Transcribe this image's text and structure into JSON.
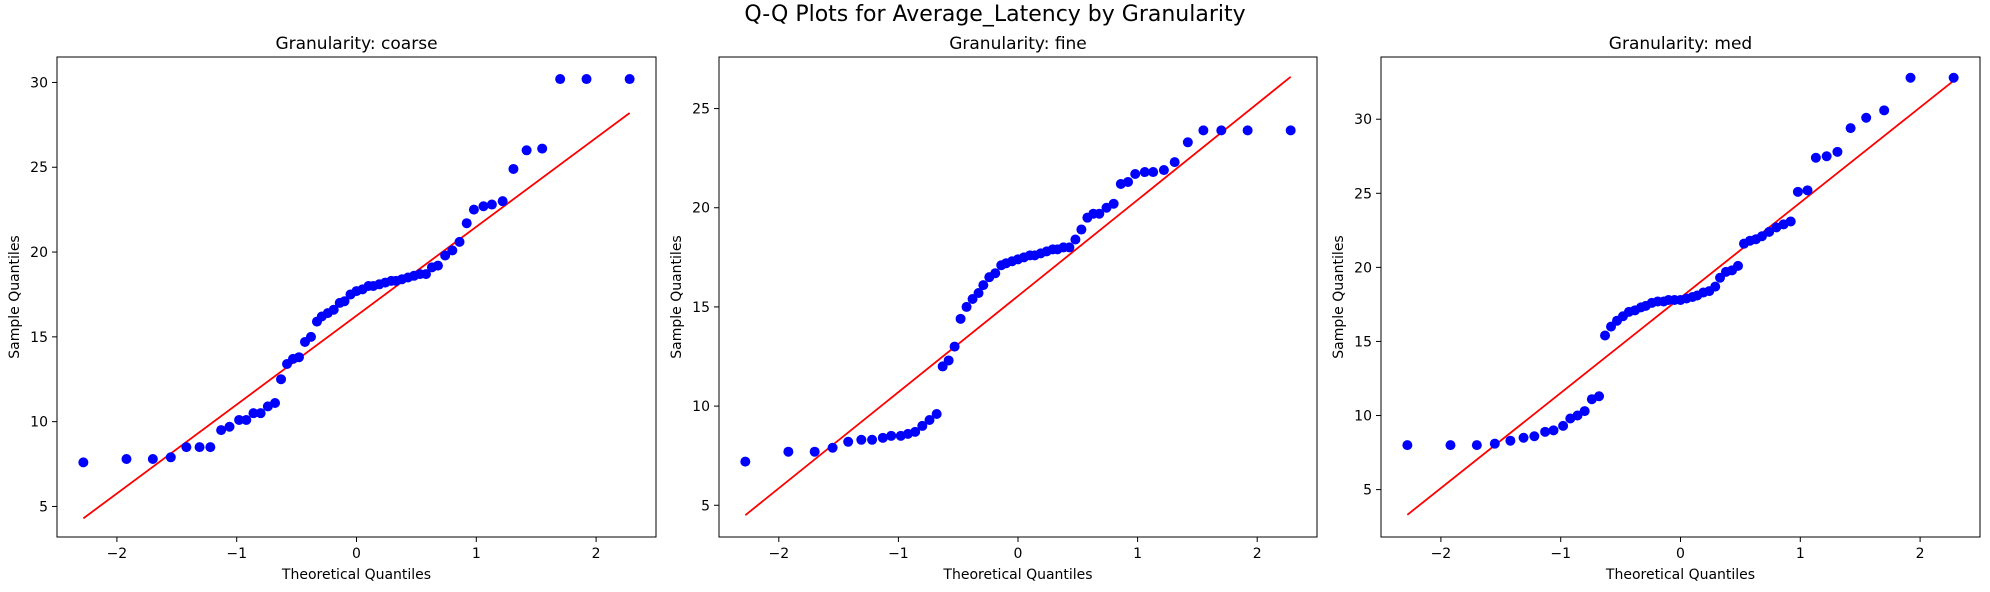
{
  "figure": {
    "title": "Q-Q Plots for Average_Latency by Granularity",
    "point_color": "#0000ff",
    "line_color": "#ff0000"
  },
  "chart_data": [
    {
      "type": "scatter",
      "title": "Granularity: coarse",
      "xlabel": "Theoretical Quantiles",
      "ylabel": "Sample Quantiles",
      "xlim": [
        -2.5,
        2.5
      ],
      "ylim": [
        3.2,
        31.5
      ],
      "xticks": [
        -2,
        -1,
        0,
        1,
        2
      ],
      "yticks": [
        5,
        10,
        15,
        20,
        25,
        30
      ],
      "fit_line": {
        "x": [
          -2.28,
          2.28
        ],
        "y": [
          4.3,
          28.2
        ]
      },
      "points": {
        "x": [
          -2.28,
          -1.92,
          -1.7,
          -1.55,
          -1.42,
          -1.31,
          -1.22,
          -1.13,
          -1.06,
          -0.98,
          -0.92,
          -0.86,
          -0.8,
          -0.74,
          -0.68,
          -0.63,
          -0.58,
          -0.53,
          -0.48,
          -0.43,
          -0.38,
          -0.33,
          -0.29,
          -0.24,
          -0.19,
          -0.14,
          -0.1,
          -0.05,
          0.0,
          0.05,
          0.1,
          0.14,
          0.19,
          0.24,
          0.29,
          0.33,
          0.38,
          0.43,
          0.48,
          0.53,
          0.58,
          0.63,
          0.68,
          0.74,
          0.8,
          0.86,
          0.92,
          0.98,
          1.06,
          1.13,
          1.22,
          1.31,
          1.42,
          1.55,
          1.7,
          1.92,
          2.28
        ],
        "y": [
          7.6,
          7.8,
          7.8,
          7.9,
          8.5,
          8.5,
          8.5,
          9.5,
          9.7,
          10.1,
          10.1,
          10.5,
          10.5,
          10.9,
          11.1,
          12.5,
          13.4,
          13.7,
          13.8,
          14.7,
          15.0,
          15.9,
          16.2,
          16.4,
          16.6,
          17.0,
          17.1,
          17.5,
          17.7,
          17.8,
          18.0,
          18.0,
          18.1,
          18.2,
          18.3,
          18.3,
          18.4,
          18.5,
          18.6,
          18.7,
          18.7,
          19.1,
          19.2,
          19.8,
          20.1,
          20.6,
          21.7,
          22.5,
          22.7,
          22.8,
          23.0,
          24.9,
          26.0,
          26.1,
          30.2,
          30.2,
          30.2
        ]
      }
    },
    {
      "type": "scatter",
      "title": "Granularity: fine",
      "xlabel": "Theoretical Quantiles",
      "ylabel": "Sample Quantiles",
      "xlim": [
        -2.5,
        2.5
      ],
      "ylim": [
        3.4,
        27.6
      ],
      "xticks": [
        -2,
        -1,
        0,
        1,
        2
      ],
      "yticks": [
        5,
        10,
        15,
        20,
        25
      ],
      "fit_line": {
        "x": [
          -2.28,
          2.28
        ],
        "y": [
          4.5,
          26.6
        ]
      },
      "points": {
        "x": [
          -2.28,
          -1.92,
          -1.7,
          -1.55,
          -1.42,
          -1.31,
          -1.22,
          -1.13,
          -1.06,
          -0.98,
          -0.92,
          -0.86,
          -0.8,
          -0.74,
          -0.68,
          -0.63,
          -0.58,
          -0.53,
          -0.48,
          -0.43,
          -0.38,
          -0.33,
          -0.29,
          -0.24,
          -0.19,
          -0.14,
          -0.1,
          -0.05,
          0.0,
          0.05,
          0.1,
          0.14,
          0.19,
          0.24,
          0.29,
          0.33,
          0.38,
          0.43,
          0.48,
          0.53,
          0.58,
          0.63,
          0.68,
          0.74,
          0.8,
          0.86,
          0.92,
          0.98,
          1.06,
          1.13,
          1.22,
          1.31,
          1.42,
          1.55,
          1.7,
          1.92,
          2.28
        ],
        "y": [
          7.2,
          7.7,
          7.7,
          7.9,
          8.2,
          8.3,
          8.3,
          8.4,
          8.5,
          8.5,
          8.6,
          8.7,
          9.0,
          9.3,
          9.6,
          12.0,
          12.3,
          13.0,
          14.4,
          15.0,
          15.4,
          15.7,
          16.1,
          16.5,
          16.7,
          17.1,
          17.2,
          17.3,
          17.4,
          17.5,
          17.6,
          17.6,
          17.7,
          17.8,
          17.9,
          17.9,
          18.0,
          18.0,
          18.4,
          18.9,
          19.5,
          19.7,
          19.7,
          20.0,
          20.2,
          21.2,
          21.3,
          21.7,
          21.8,
          21.8,
          21.9,
          22.3,
          23.3,
          23.9,
          23.9,
          23.9,
          23.9
        ]
      }
    },
    {
      "type": "scatter",
      "title": "Granularity: med",
      "xlabel": "Theoretical Quantiles",
      "ylabel": "Sample Quantiles",
      "xlim": [
        -2.5,
        2.5
      ],
      "ylim": [
        1.8,
        34.2
      ],
      "xticks": [
        -2,
        -1,
        0,
        1,
        2
      ],
      "yticks": [
        5,
        10,
        15,
        20,
        25,
        30
      ],
      "fit_line": {
        "x": [
          -2.28,
          2.28
        ],
        "y": [
          3.3,
          32.6
        ]
      },
      "points": {
        "x": [
          -2.28,
          -1.92,
          -1.7,
          -1.55,
          -1.42,
          -1.31,
          -1.22,
          -1.13,
          -1.06,
          -0.98,
          -0.92,
          -0.86,
          -0.8,
          -0.74,
          -0.68,
          -0.63,
          -0.58,
          -0.53,
          -0.48,
          -0.43,
          -0.38,
          -0.33,
          -0.29,
          -0.24,
          -0.19,
          -0.14,
          -0.1,
          -0.05,
          0.0,
          0.05,
          0.1,
          0.14,
          0.19,
          0.24,
          0.29,
          0.33,
          0.38,
          0.43,
          0.48,
          0.53,
          0.58,
          0.63,
          0.68,
          0.74,
          0.8,
          0.86,
          0.92,
          0.98,
          1.06,
          1.13,
          1.22,
          1.31,
          1.42,
          1.55,
          1.7,
          1.92,
          2.28
        ],
        "y": [
          8.0,
          8.0,
          8.0,
          8.1,
          8.3,
          8.5,
          8.6,
          8.9,
          9.0,
          9.3,
          9.8,
          10.0,
          10.3,
          11.1,
          11.3,
          15.4,
          16.0,
          16.4,
          16.7,
          17.0,
          17.1,
          17.3,
          17.4,
          17.6,
          17.7,
          17.7,
          17.8,
          17.8,
          17.8,
          17.9,
          18.0,
          18.1,
          18.3,
          18.4,
          18.7,
          19.3,
          19.7,
          19.8,
          20.1,
          21.6,
          21.8,
          21.9,
          22.1,
          22.4,
          22.7,
          22.9,
          23.1,
          25.1,
          25.2,
          27.4,
          27.5,
          27.8,
          29.4,
          30.1,
          30.6,
          32.8,
          32.8
        ]
      }
    }
  ]
}
